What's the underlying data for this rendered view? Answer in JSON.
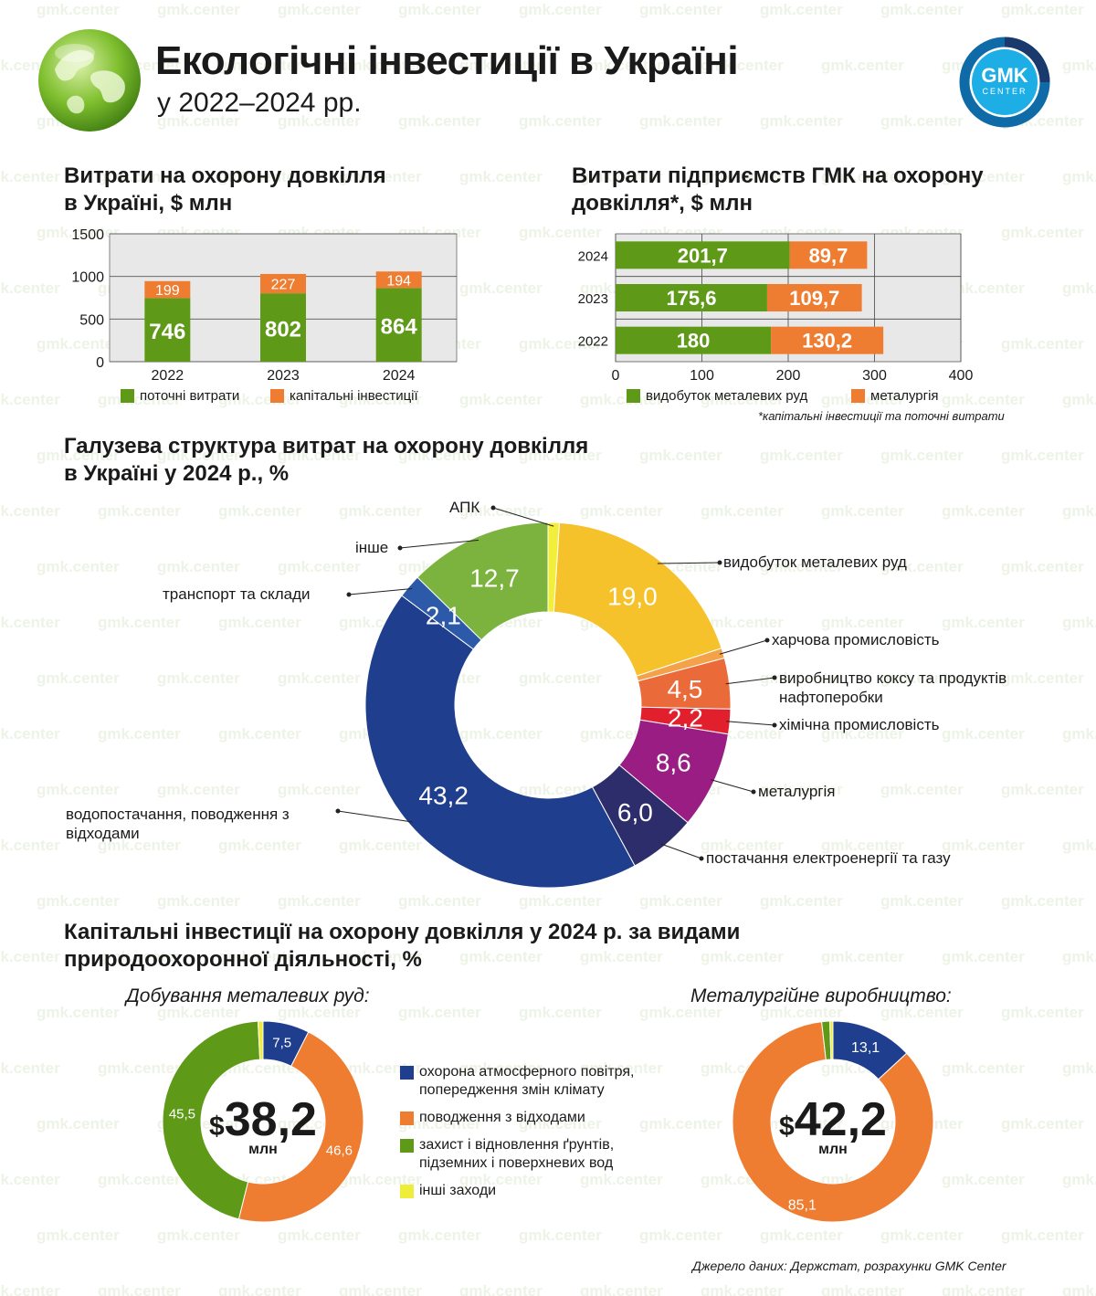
{
  "header": {
    "title": "Екологічні інвестиції в Україні",
    "subtitle": "у 2022–2024 рр.",
    "logo_text": "GMK",
    "logo_subtext": "CENTER",
    "watermark": "gmk.center"
  },
  "colors": {
    "green": "#5e9a18",
    "orange": "#ee7d32",
    "navy": "#1f3f8e",
    "grid_bg": "#e8e8e8"
  },
  "sections": {
    "env_spending_line1": "Витрати на охорону довкілля",
    "env_spending_line2": "в Україні, $ млн",
    "gmk_spending_line1": "Витрати підприємств ГМК на охорону",
    "gmk_spending_line2": "довкілля*, $ млн",
    "industry_line1": "Галузева структура витрат на охорону довкілля",
    "industry_line2": "в Україні у 2024 р., %",
    "capex_line1": "Капітальні інвестиції на охорону довкілля у 2024 р. за видами",
    "capex_line2": "природоохоронної діяльності, %"
  },
  "legends": {
    "current": "поточні витрати",
    "capital": "капітальні інвестиції",
    "mining": "видобуток металевих руд",
    "metallurgy": "металургія",
    "footnote": "*капітальні інвестиції та поточні витрати"
  },
  "chart_data": [
    {
      "type": "bar",
      "stacked": true,
      "categories": [
        "2022",
        "2023",
        "2024"
      ],
      "series": [
        {
          "name": "поточні витрати",
          "values": [
            746,
            802,
            864
          ],
          "color": "#5e9a18"
        },
        {
          "name": "капітальні інвестиції",
          "values": [
            199,
            227,
            194
          ],
          "color": "#ee7d32"
        }
      ],
      "yticks": [
        "0",
        "500",
        "1000",
        "1500"
      ],
      "ylim": [
        0,
        1500
      ],
      "grid": true
    },
    {
      "type": "bar",
      "orientation": "horizontal",
      "stacked": true,
      "categories": [
        "2024",
        "2023",
        "2022"
      ],
      "series": [
        {
          "name": "видобуток металевих руд",
          "values": [
            201.7,
            175.6,
            180
          ],
          "labels": [
            "201,7",
            "175,6",
            "180"
          ],
          "color": "#5e9a18"
        },
        {
          "name": "металургія",
          "values": [
            89.7,
            109.7,
            130.2
          ],
          "labels": [
            "89,7",
            "109,7",
            "130,2"
          ],
          "color": "#ee7d32"
        }
      ],
      "xticks": [
        "0",
        "100",
        "200",
        "300",
        "400"
      ],
      "xlim": [
        0,
        400
      ],
      "grid": true
    },
    {
      "type": "pie",
      "donut": true,
      "slices": [
        {
          "name": "АПК",
          "value": 1.0,
          "label": "",
          "color": "#f2ef3a"
        },
        {
          "name": "видобуток металевих руд",
          "value": 19.0,
          "label": "19,0",
          "color": "#f5c22b"
        },
        {
          "name": "харчова промисловість",
          "value": 0.9,
          "label": "",
          "color": "#f3a24a"
        },
        {
          "name": "виробництво коксу та продуктів нафтоперобки",
          "value": 4.5,
          "label": "4,5",
          "color": "#eb6a3a"
        },
        {
          "name": "хімічна промисловість",
          "value": 2.2,
          "label": "2,2",
          "color": "#e11f2d"
        },
        {
          "name": "металургія",
          "value": 8.6,
          "label": "8,6",
          "color": "#9a1d83"
        },
        {
          "name": "постачання електроенергії та газу",
          "value": 6.0,
          "label": "6,0",
          "color": "#2e2d6b"
        },
        {
          "name": "водопостачання, поводження з відходами",
          "value": 43.2,
          "label": "43,2",
          "color": "#1f3f8e"
        },
        {
          "name": "транспорт та склади",
          "value": 2.1,
          "label": "2,1",
          "color": "#2d5aa8"
        },
        {
          "name": "інше",
          "value": 12.7,
          "label": "12,7",
          "color": "#7bb33e"
        }
      ]
    },
    {
      "type": "pie",
      "donut": true,
      "title": "Добування металевих руд:",
      "total": "38,2",
      "currency": "$",
      "unit": "млн",
      "slices": [
        {
          "name": "охорона атмосферного повітря, попередження змін клімату",
          "value": 7.5,
          "label": "7,5",
          "color": "#1f3f8e"
        },
        {
          "name": "поводження з відходами",
          "value": 46.6,
          "label": "46,6",
          "color": "#ee7d32"
        },
        {
          "name": "захист і відновлення ґрунтів, підземних і поверхневих вод",
          "value": 45.5,
          "label": "45,5",
          "color": "#5e9a18"
        },
        {
          "name": "інші заходи",
          "value": 0.8,
          "label": "",
          "color": "#eeee3a"
        }
      ]
    },
    {
      "type": "pie",
      "donut": true,
      "title": "Металургійне виробництво:",
      "total": "42,2",
      "currency": "$",
      "unit": "млн",
      "slices": [
        {
          "name": "охорона атмосферного повітря, попередження змін клімату",
          "value": 13.1,
          "label": "13,1",
          "color": "#1f3f8e"
        },
        {
          "name": "поводження з відходами",
          "value": 85.1,
          "label": "85,1",
          "color": "#ee7d32"
        },
        {
          "name": "захист і відновлення ґрунтів, підземних і поверхневих вод",
          "value": 1.3,
          "label": "",
          "color": "#5e9a18"
        },
        {
          "name": "інші заходи",
          "value": 0.5,
          "label": "",
          "color": "#eeee3a"
        }
      ]
    }
  ],
  "capex_legend": {
    "item1_line1": "охорона атмосферного повітря,",
    "item1_line2": "попередження змін клімату",
    "item2": "поводження з відходами",
    "item3_line1": "захист і відновлення ґрунтів,",
    "item3_line2": "підземних і поверхневих вод",
    "item4": "інші заходи"
  },
  "donut_labels": {
    "apk": "АПК",
    "other": "інше",
    "transport": "транспорт та склади",
    "mining": "видобуток металевих руд",
    "food": "харчова промисловість",
    "coke_line1": "виробництво коксу та продуктів",
    "coke_line2": "нафтоперобки",
    "chem": "хімічна промисловість",
    "metal": "металургія",
    "energy": "постачання електроенергії та газу",
    "water_line1": "водопостачання, поводження з",
    "water_line2": "відходами"
  },
  "source": "Джерело даних: Держстат, розрахунки GMK Center"
}
